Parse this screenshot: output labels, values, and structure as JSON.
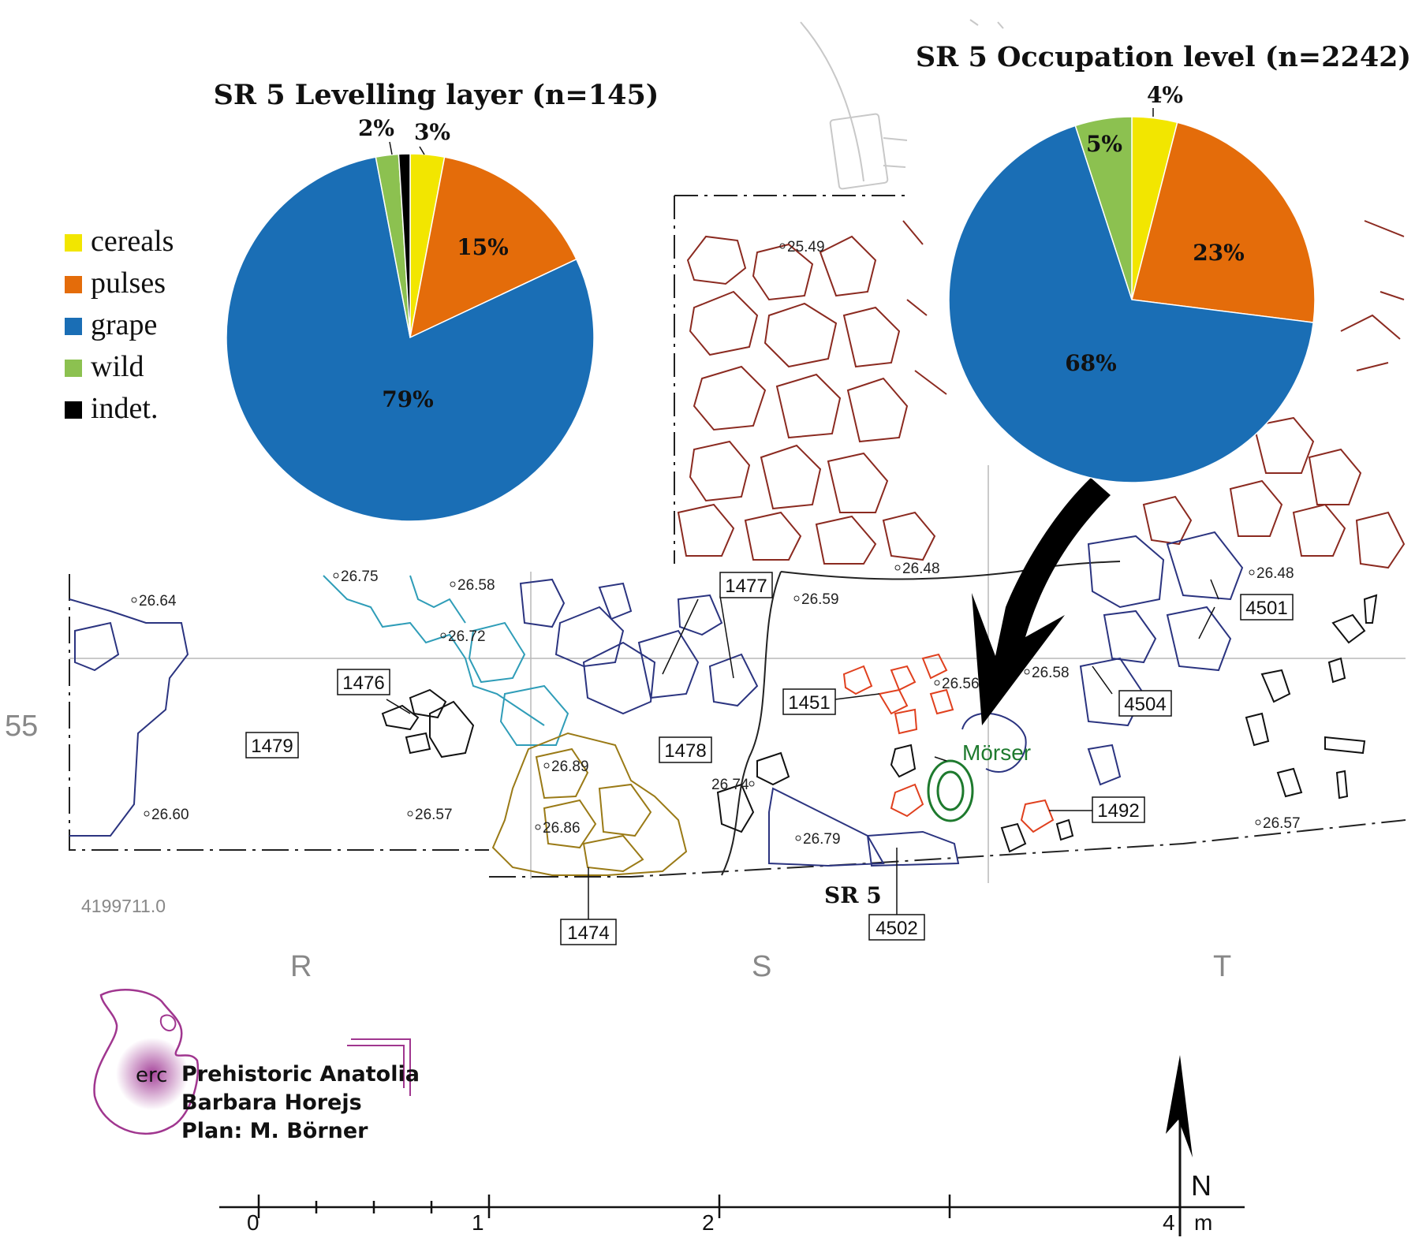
{
  "chart_data": [
    {
      "type": "pie",
      "title": "SR 5 Levelling layer (n=145)",
      "labels": [
        "cereals",
        "pulses",
        "grape",
        "wild",
        "indet."
      ],
      "values": [
        3,
        15,
        79,
        2,
        1
      ],
      "pct_labels": [
        "3%",
        "15%",
        "79%",
        "2%",
        ""
      ],
      "colors": [
        "#f2e600",
        "#e46c0a",
        "#1a6eb5",
        "#8cc150",
        "#000000"
      ]
    },
    {
      "type": "pie",
      "title": "SR 5 Occupation level (n=2242)",
      "labels": [
        "cereals",
        "pulses",
        "grape",
        "wild"
      ],
      "values": [
        4,
        23,
        68,
        5
      ],
      "pct_labels": [
        "4%",
        "23%",
        "68%",
        "5%"
      ],
      "colors": [
        "#f2e600",
        "#e46c0a",
        "#1a6eb5",
        "#8cc150"
      ]
    }
  ],
  "legend": [
    {
      "label": "cereals",
      "color": "#f2e600"
    },
    {
      "label": "pulses",
      "color": "#e46c0a"
    },
    {
      "label": "grape",
      "color": "#1a6eb5"
    },
    {
      "label": "wild",
      "color": "#8cc150"
    },
    {
      "label": "indet.",
      "color": "#000000"
    }
  ],
  "plan": {
    "context_labels": [
      "1477",
      "1476",
      "1479",
      "1478",
      "1451",
      "4501",
      "4504",
      "1492",
      "1474",
      "4502"
    ],
    "elevations": [
      "25.49",
      "26.48",
      "26.48",
      "26.75",
      "26.58",
      "26.64",
      "26.72",
      "26.59",
      "26.56",
      "26.58",
      "26.89",
      "26.86",
      "26.74",
      "26.79",
      "26.60",
      "26.57",
      "26.57"
    ],
    "feature_label": "Mörser",
    "structure_label": "SR 5",
    "grid_row": "55",
    "grid_cols": [
      "R",
      "S",
      "T"
    ],
    "coordinate": "4199711.0"
  },
  "credits": {
    "logo_text": "erc",
    "project": "Prehistoric Anatolia",
    "author": "Barbara Horejs",
    "plan_by": "Plan: M. Börner"
  },
  "scale": {
    "ticks": [
      "0",
      "1",
      "2",
      "4"
    ],
    "unit": "m",
    "north": "N"
  }
}
